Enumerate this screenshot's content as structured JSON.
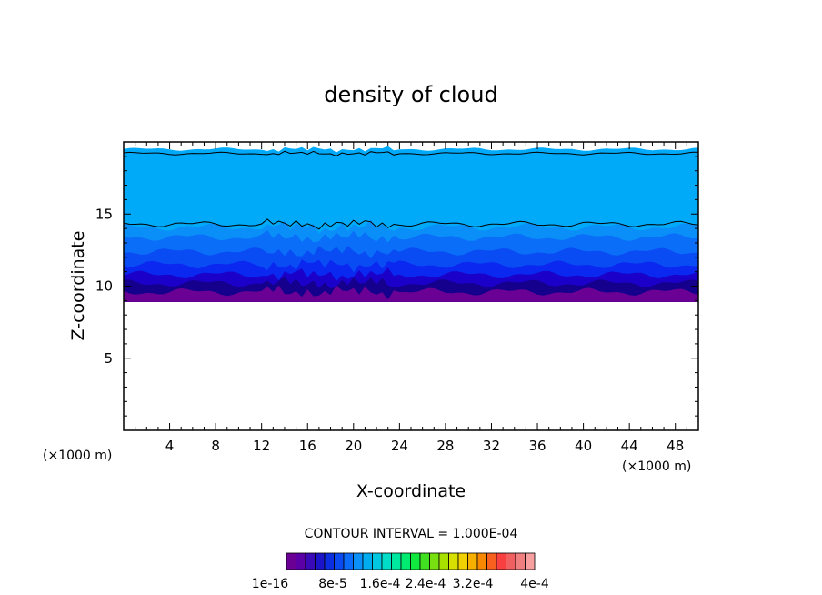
{
  "chart_data": {
    "type": "heatmap",
    "title": "density of cloud",
    "xlabel": "X-coordinate",
    "ylabel": "Z-coordinate",
    "x_unit": "(×1000 m)",
    "z_unit": "(×1000 m)",
    "xlim": [
      0,
      50
    ],
    "ylim": [
      0,
      20
    ],
    "xticks": [
      "4",
      "8",
      "12",
      "16",
      "20",
      "24",
      "28",
      "32",
      "36",
      "40",
      "44",
      "48"
    ],
    "yticks": [
      "5",
      "10",
      "15"
    ],
    "contour_interval_text": "CONTOUR INTERVAL = 1.000E-04",
    "colorbar_labels": [
      "1e-16",
      "8e-5",
      "1.6e-4",
      "2.4e-4",
      "3.2e-4",
      "4e-4"
    ],
    "colorbar_colors": [
      "#6a0094",
      "#5a00a6",
      "#3a0ab8",
      "#1c14c8",
      "#0a2ee0",
      "#0a4af0",
      "#0a6cf8",
      "#0a90f8",
      "#00acf0",
      "#00c8e0",
      "#00dcc8",
      "#00e8a0",
      "#00ec70",
      "#10e840",
      "#40e020",
      "#78e010",
      "#a8e000",
      "#d8e000",
      "#f0d000",
      "#f8b000",
      "#f88800",
      "#f86020",
      "#f84040",
      "#f06060",
      "#f08080",
      "#f8a0a0"
    ],
    "band_colors": {
      "purple": "#6a0094",
      "band_dark_navy": "#14008c",
      "band_dark_blue": "#1a00c8",
      "band_blue": "#0a28f0",
      "band_mid_blue": "#0a4cf4",
      "band_light_blue": "#0a6ef8",
      "band_sky": "#0a8ff8",
      "top_cyan": "#00aaf8"
    },
    "contour_levels_z": [
      9,
      10,
      11,
      12,
      13,
      14.3,
      19.2
    ]
  }
}
